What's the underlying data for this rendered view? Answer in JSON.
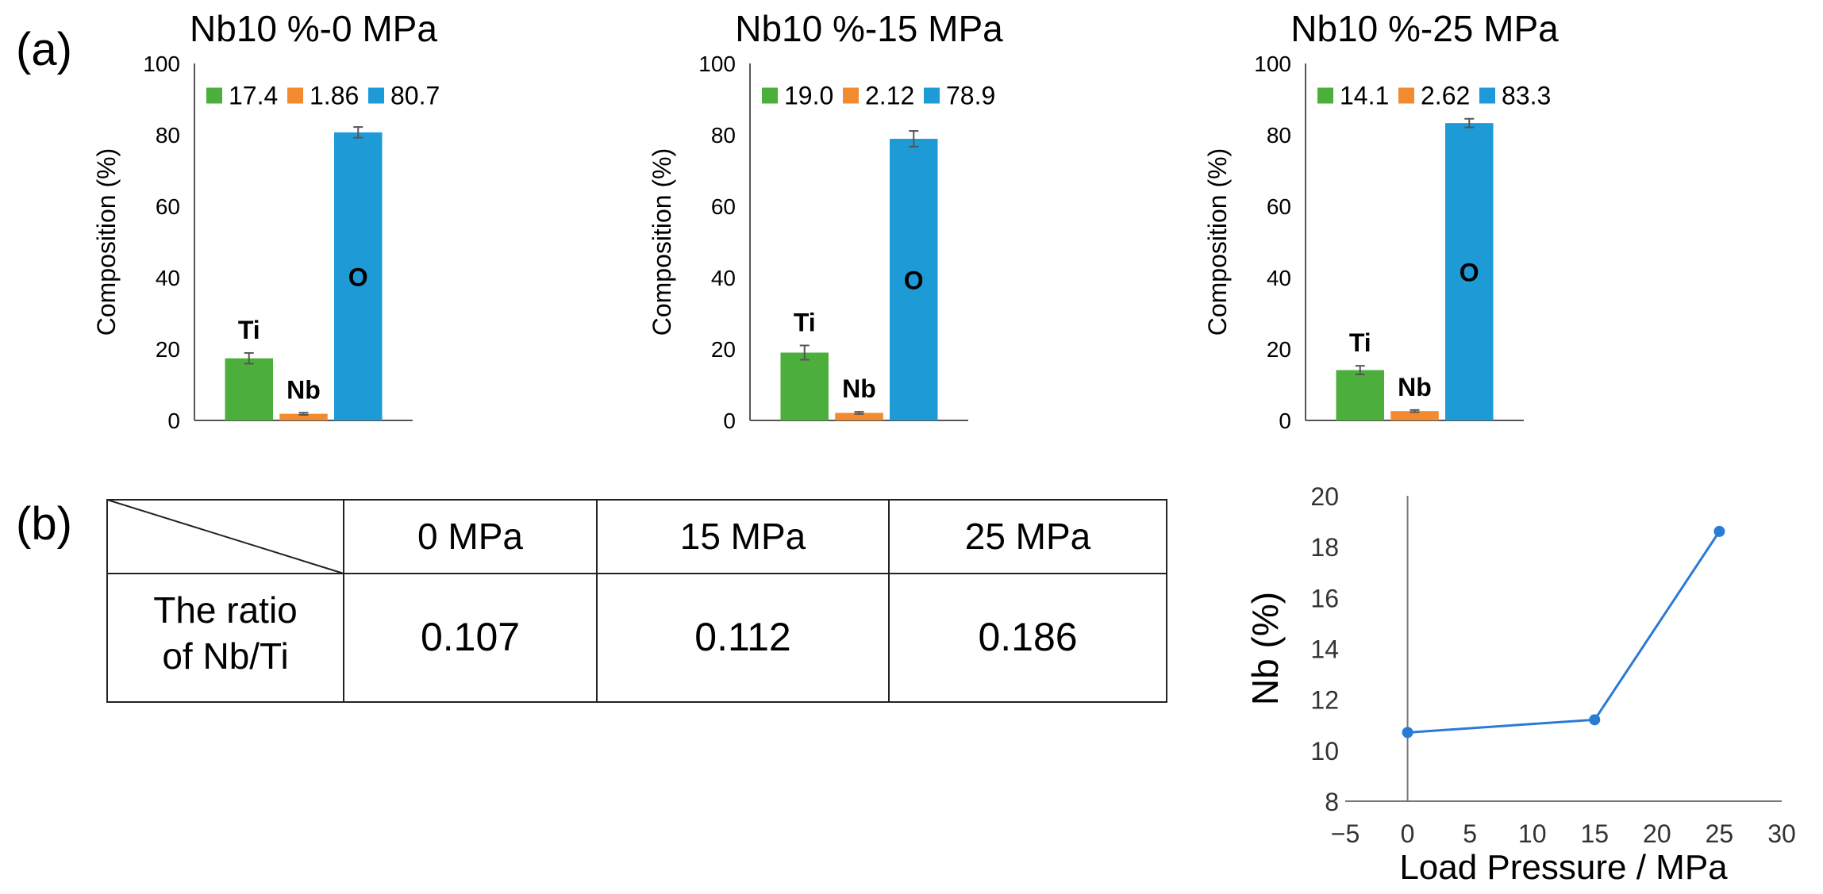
{
  "panel_labels": [
    "(a)",
    "(b)"
  ],
  "chart_data": [
    {
      "type": "bar",
      "title": "Nb10 %-0 MPa",
      "ylabel": "Composition (%)",
      "ylim": [
        0,
        100
      ],
      "yticks": [
        0,
        20,
        40,
        60,
        80,
        100
      ],
      "categories": [
        "Ti",
        "Nb",
        "O"
      ],
      "values": [
        17.4,
        1.86,
        80.7
      ],
      "errors": [
        1.5,
        0.3,
        1.5
      ],
      "legend": [
        "17.4",
        "1.86",
        "80.7"
      ],
      "legend_position": "top",
      "colors": [
        "#4caf3c",
        "#f28b30",
        "#1e9bd7"
      ]
    },
    {
      "type": "bar",
      "title": "Nb10 %-15 MPa",
      "ylabel": "Composition (%)",
      "ylim": [
        0,
        100
      ],
      "yticks": [
        0,
        20,
        40,
        60,
        80,
        100
      ],
      "categories": [
        "Ti",
        "Nb",
        "O"
      ],
      "values": [
        19.0,
        2.12,
        78.9
      ],
      "errors": [
        2.0,
        0.3,
        2.2
      ],
      "legend": [
        "19.0",
        "2.12",
        "78.9"
      ],
      "legend_position": "top",
      "colors": [
        "#4caf3c",
        "#f28b30",
        "#1e9bd7"
      ]
    },
    {
      "type": "bar",
      "title": "Nb10 %-25 MPa",
      "ylabel": "Composition (%)",
      "ylim": [
        0,
        100
      ],
      "yticks": [
        0,
        20,
        40,
        60,
        80,
        100
      ],
      "categories": [
        "Ti",
        "Nb",
        "O"
      ],
      "values": [
        14.1,
        2.62,
        83.3
      ],
      "errors": [
        1.2,
        0.3,
        1.2
      ],
      "legend": [
        "14.1",
        "2.62",
        "83.3"
      ],
      "legend_position": "top",
      "colors": [
        "#4caf3c",
        "#f28b30",
        "#1e9bd7"
      ]
    },
    {
      "type": "table",
      "columns": [
        "0 MPa",
        "15 MPa",
        "25 MPa"
      ],
      "row_header": [
        "The ratio",
        "of Nb/Ti"
      ],
      "values": [
        "0.107",
        "0.112",
        "0.186"
      ]
    },
    {
      "type": "line",
      "xlabel": "Load Pressure / MPa",
      "ylabel": "Nb (%)",
      "xlim": [
        -5,
        30
      ],
      "ylim": [
        8,
        20
      ],
      "xticks": [
        -5,
        0,
        5,
        10,
        15,
        20,
        25,
        30
      ],
      "yticks": [
        8,
        10,
        12,
        14,
        16,
        18,
        20
      ],
      "x": [
        0,
        15,
        25
      ],
      "y": [
        10.7,
        11.2,
        18.6
      ],
      "color": "#2a7bd4"
    }
  ]
}
